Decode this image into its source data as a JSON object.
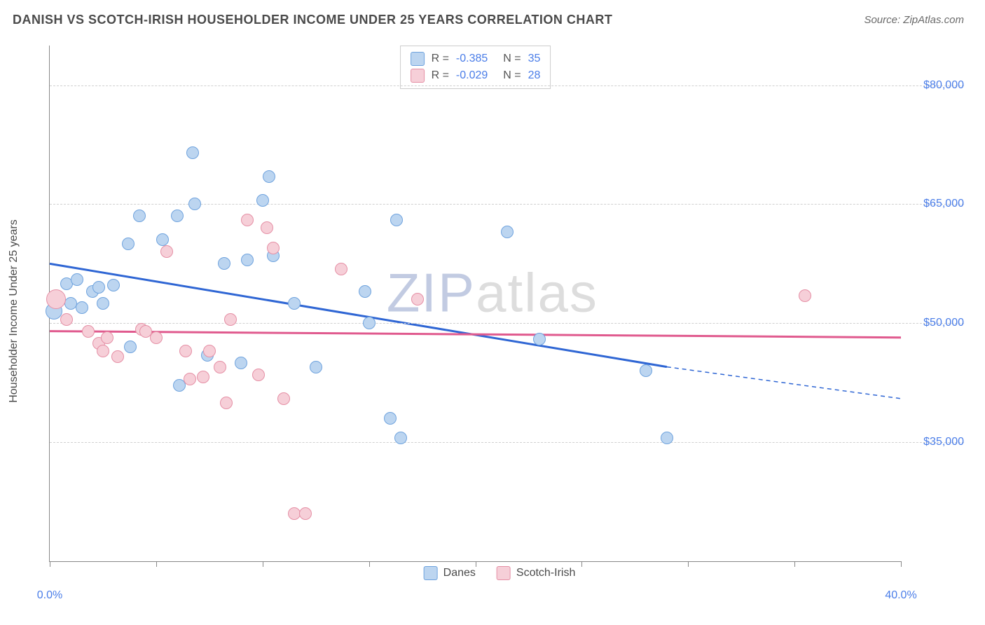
{
  "header": {
    "title": "DANISH VS SCOTCH-IRISH HOUSEHOLDER INCOME UNDER 25 YEARS CORRELATION CHART",
    "source": "Source: ZipAtlas.com"
  },
  "chart": {
    "type": "scatter",
    "ylabel": "Householder Income Under 25 years",
    "xlim": [
      0,
      40
    ],
    "ylim": [
      20000,
      85000
    ],
    "x_ticks": [
      0,
      5,
      10,
      15,
      20,
      25,
      30,
      35,
      40
    ],
    "x_tick_labels": {
      "0": "0.0%",
      "40": "40.0%"
    },
    "y_gridlines": [
      35000,
      50000,
      65000,
      80000
    ],
    "y_tick_labels": {
      "35000": "$35,000",
      "50000": "$50,000",
      "65000": "$65,000",
      "80000": "$80,000"
    },
    "grid_color": "#d0d0d0",
    "axis_color": "#888888",
    "label_color": "#4a7de8",
    "background_color": "#ffffff",
    "label_fontsize": 16,
    "watermark": {
      "text_strong": "ZIP",
      "text_light": "atlas"
    },
    "series": {
      "danes": {
        "label": "Danes",
        "fill": "#bcd5f0",
        "stroke": "#6fa3de",
        "trend_color": "#2f66d4",
        "marker_radius": 9,
        "stroke_width": 1.2,
        "R": "-0.385",
        "N": "35",
        "trend": {
          "x1": 0,
          "y1": 57500,
          "x2": 29,
          "y2": 44500,
          "x_dash_to": 40,
          "y_dash_to": 40500
        },
        "points": [
          {
            "x": 0.2,
            "y": 51500,
            "r": 12
          },
          {
            "x": 0.8,
            "y": 55000
          },
          {
            "x": 1.0,
            "y": 52500
          },
          {
            "x": 1.3,
            "y": 55500
          },
          {
            "x": 1.5,
            "y": 52000
          },
          {
            "x": 2.0,
            "y": 54000
          },
          {
            "x": 2.3,
            "y": 54500
          },
          {
            "x": 2.5,
            "y": 52500
          },
          {
            "x": 3.0,
            "y": 54800
          },
          {
            "x": 3.7,
            "y": 60000
          },
          {
            "x": 3.8,
            "y": 47000
          },
          {
            "x": 4.2,
            "y": 63500
          },
          {
            "x": 5.3,
            "y": 60500
          },
          {
            "x": 6.0,
            "y": 63500
          },
          {
            "x": 6.1,
            "y": 42200
          },
          {
            "x": 6.7,
            "y": 71500
          },
          {
            "x": 6.8,
            "y": 65000
          },
          {
            "x": 7.4,
            "y": 46000
          },
          {
            "x": 8.2,
            "y": 57500
          },
          {
            "x": 9.0,
            "y": 45000
          },
          {
            "x": 9.3,
            "y": 58000
          },
          {
            "x": 10.0,
            "y": 65500
          },
          {
            "x": 10.3,
            "y": 68500
          },
          {
            "x": 10.5,
            "y": 58500
          },
          {
            "x": 11.5,
            "y": 52500
          },
          {
            "x": 12.5,
            "y": 44500
          },
          {
            "x": 14.8,
            "y": 54000
          },
          {
            "x": 15.0,
            "y": 50000
          },
          {
            "x": 16.0,
            "y": 38000
          },
          {
            "x": 16.3,
            "y": 63000
          },
          {
            "x": 16.5,
            "y": 35500
          },
          {
            "x": 21.5,
            "y": 61500
          },
          {
            "x": 23.0,
            "y": 48000
          },
          {
            "x": 28.0,
            "y": 44000
          },
          {
            "x": 29.0,
            "y": 35500
          }
        ]
      },
      "scotch_irish": {
        "label": "Scotch-Irish",
        "fill": "#f6cfd8",
        "stroke": "#e58fa5",
        "trend_color": "#e05a8e",
        "marker_radius": 9,
        "stroke_width": 1.2,
        "R": "-0.029",
        "N": "28",
        "trend": {
          "x1": 0,
          "y1": 49000,
          "x2": 40,
          "y2": 48200
        },
        "points": [
          {
            "x": 0.3,
            "y": 53000,
            "r": 14
          },
          {
            "x": 0.8,
            "y": 50500
          },
          {
            "x": 1.8,
            "y": 49000
          },
          {
            "x": 2.3,
            "y": 47500
          },
          {
            "x": 2.5,
            "y": 46500
          },
          {
            "x": 2.7,
            "y": 48200
          },
          {
            "x": 3.2,
            "y": 45800
          },
          {
            "x": 4.3,
            "y": 49200
          },
          {
            "x": 4.5,
            "y": 49000
          },
          {
            "x": 5.0,
            "y": 48200
          },
          {
            "x": 5.5,
            "y": 59000
          },
          {
            "x": 6.4,
            "y": 46500
          },
          {
            "x": 6.6,
            "y": 43000
          },
          {
            "x": 7.2,
            "y": 43200
          },
          {
            "x": 7.5,
            "y": 46500
          },
          {
            "x": 8.0,
            "y": 44500
          },
          {
            "x": 8.3,
            "y": 40000
          },
          {
            "x": 8.5,
            "y": 50500
          },
          {
            "x": 9.3,
            "y": 63000
          },
          {
            "x": 9.8,
            "y": 43500
          },
          {
            "x": 10.2,
            "y": 62000
          },
          {
            "x": 10.5,
            "y": 59500
          },
          {
            "x": 11.0,
            "y": 40500
          },
          {
            "x": 11.5,
            "y": 26000
          },
          {
            "x": 12.0,
            "y": 26000
          },
          {
            "x": 13.7,
            "y": 56800
          },
          {
            "x": 17.3,
            "y": 53000
          },
          {
            "x": 35.5,
            "y": 53500
          }
        ]
      }
    },
    "legend_top": [
      {
        "series": "danes"
      },
      {
        "series": "scotch_irish"
      }
    ],
    "legend_bottom": [
      {
        "series": "danes"
      },
      {
        "series": "scotch_irish"
      }
    ]
  }
}
